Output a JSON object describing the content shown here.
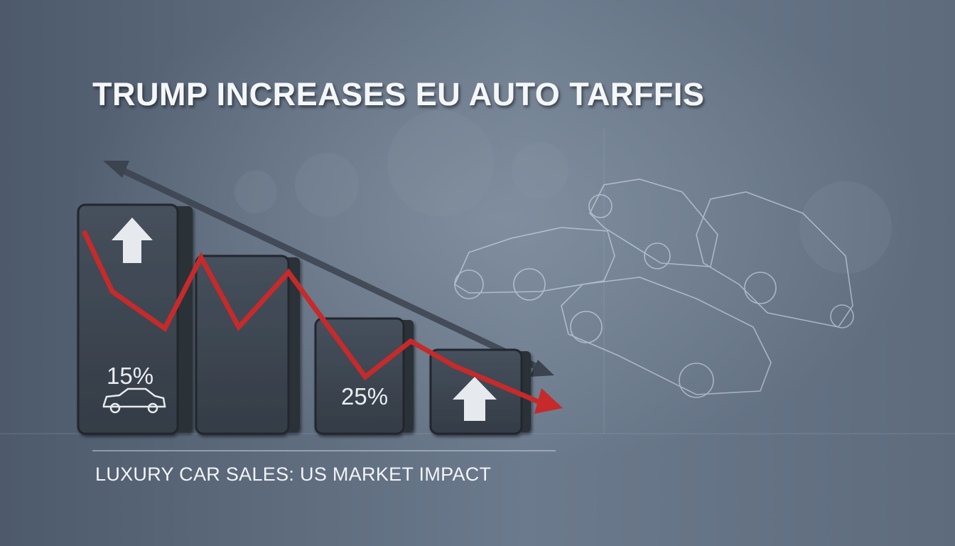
{
  "header": {
    "title": "TRUMP INCREASES EU AUTO TARFFIS"
  },
  "bars": {
    "labels": [
      "15%",
      "25%"
    ]
  },
  "footer": {
    "subtitle": "LUXURY CAR SALES: US MARKET IMPACT"
  }
}
